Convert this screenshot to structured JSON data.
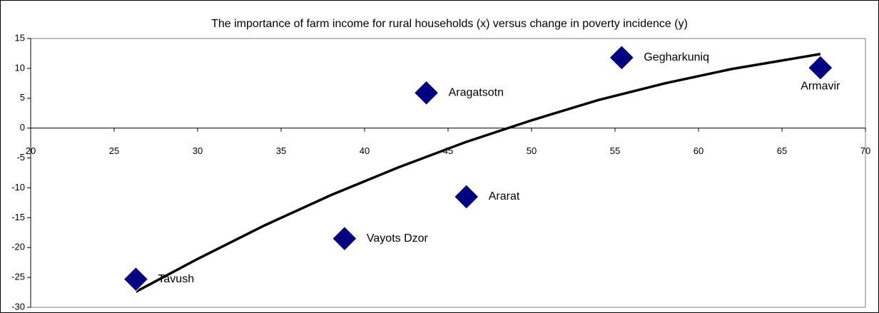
{
  "chart_data": {
    "type": "scatter",
    "title": "The importance of farm income for rural households (x) versus change in poverty incidence (y)",
    "series": [
      {
        "color": "#000080",
        "labels": [
          "Tavush",
          "Vayots Dzor",
          "Ararat",
          "Aragatsotn",
          "Gegharkuniq",
          "Armavir"
        ],
        "x": [
          26.3,
          38.8,
          46.1,
          43.7,
          55.4,
          67.3
        ],
        "values": [
          -25.3,
          -18.5,
          -11.5,
          5.9,
          11.8,
          10.1
        ]
      }
    ],
    "trendline": {
      "color": "#000000",
      "x": [
        26.3,
        30,
        34,
        38,
        42,
        46,
        50,
        54,
        58,
        62,
        67.3
      ],
      "values": [
        -27.4,
        -21.9,
        -16.3,
        -11.2,
        -6.6,
        -2.4,
        1.3,
        4.7,
        7.5,
        9.9,
        12.4
      ]
    },
    "xlim": [
      20,
      70
    ],
    "xticks": [
      20,
      25,
      30,
      35,
      40,
      45,
      50,
      55,
      60,
      65,
      70
    ],
    "ylim": [
      -30,
      15
    ],
    "yticks": [
      -30,
      -25,
      -20,
      -15,
      -10,
      -5,
      0,
      5,
      10,
      15
    ],
    "grid": false
  }
}
